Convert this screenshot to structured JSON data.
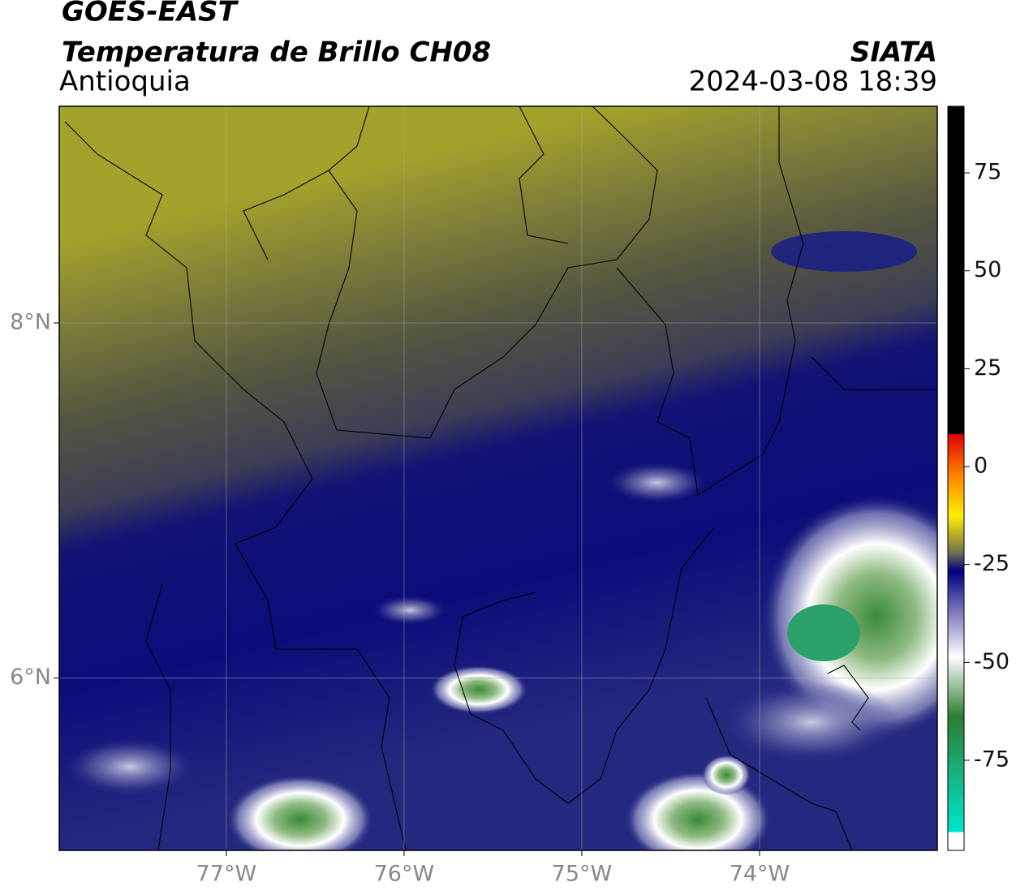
{
  "header": {
    "title": "GOES-EAST",
    "subtitle": "Temperatura de Brillo CH08",
    "region": "Antioquia",
    "source": "SIATA",
    "datetime": "2024-03-08 18:39"
  },
  "map": {
    "xlim": [
      -77.94,
      -73.0
    ],
    "ylim": [
      5.03,
      9.22
    ],
    "xticks": [
      {
        "value": -77,
        "label": "77°W"
      },
      {
        "value": -76,
        "label": "76°W"
      },
      {
        "value": -75,
        "label": "75°W"
      },
      {
        "value": -74,
        "label": "74°W"
      }
    ],
    "yticks": [
      {
        "value": 6,
        "label": "6°N"
      },
      {
        "value": 8,
        "label": "8°N"
      }
    ],
    "grid": true
  },
  "colorbar": {
    "lim": [
      -98,
      92
    ],
    "ticks": [
      75,
      50,
      25,
      0,
      -25,
      -50,
      -75
    ]
  }
}
